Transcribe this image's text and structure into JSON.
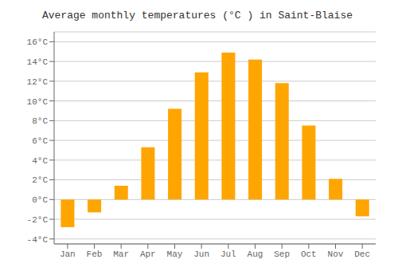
{
  "chart_data": {
    "type": "bar",
    "title": "Average monthly temperatures (°C ) in Saint-Blaise",
    "categories": [
      "Jan",
      "Feb",
      "Mar",
      "Apr",
      "May",
      "Jun",
      "Jul",
      "Aug",
      "Sep",
      "Oct",
      "Nov",
      "Dec"
    ],
    "values": [
      -2.8,
      -1.3,
      1.4,
      5.3,
      9.2,
      12.9,
      14.9,
      14.2,
      11.8,
      7.5,
      2.1,
      -1.7
    ],
    "color": "#FFA500",
    "ylim": [
      -4.5,
      17
    ],
    "yticks": [
      {
        "value": -4,
        "label": "-4°C"
      },
      {
        "value": -2,
        "label": "-2°C"
      },
      {
        "value": 0,
        "label": "0°C"
      },
      {
        "value": 2,
        "label": "2°C"
      },
      {
        "value": 4,
        "label": "4°C"
      },
      {
        "value": 6,
        "label": "6°C"
      },
      {
        "value": 8,
        "label": "8°C"
      },
      {
        "value": 10,
        "label": "10°C"
      },
      {
        "value": 12,
        "label": "12°C"
      },
      {
        "value": 14,
        "label": "14°C"
      },
      {
        "value": 16,
        "label": "16°C"
      }
    ],
    "grid": true
  }
}
